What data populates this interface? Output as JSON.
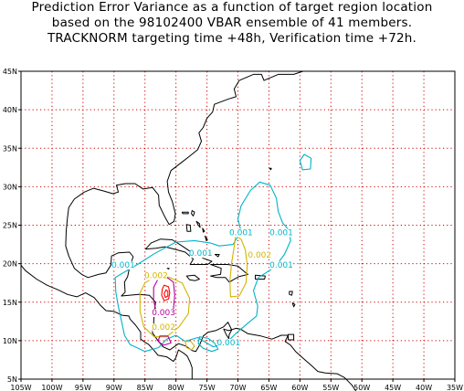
{
  "title": {
    "line1": "Prediction Error Variance as a function of target region location",
    "line2": "based on the 98102400 VBAR ensemble of 41 members.",
    "line3": "TRACKNORM targeting time +48h, Verification time +72h."
  },
  "axes": {
    "lon_labels": [
      "105W",
      "100W",
      "95W",
      "90W",
      "85W",
      "80W",
      "75W",
      "70W",
      "65W",
      "60W",
      "55W",
      "50W",
      "45W",
      "40W",
      "35W"
    ],
    "lat_labels": [
      "5N",
      "10N",
      "15N",
      "20N",
      "25N",
      "30N",
      "35N",
      "40N",
      "45N"
    ]
  },
  "contour_labels": [
    {
      "text": "0.001",
      "lon": -69.5,
      "lat": 23.7,
      "color": "#00b4c8"
    },
    {
      "text": "0.001",
      "lon": -63.0,
      "lat": 23.7,
      "color": "#00b4c8"
    },
    {
      "text": "0.002",
      "lon": -66.5,
      "lat": 20.8,
      "color": "#d2b400"
    },
    {
      "text": "0.001",
      "lon": -76.0,
      "lat": 21.0,
      "color": "#00b4c8"
    },
    {
      "text": "0.001",
      "lon": -88.5,
      "lat": 19.5,
      "color": "#00b4c8"
    },
    {
      "text": "0.001",
      "lon": -63.0,
      "lat": 19.5,
      "color": "#00b4c8"
    },
    {
      "text": "0.002",
      "lon": -83.2,
      "lat": 18.1,
      "color": "#d2b400"
    },
    {
      "text": "0.003",
      "lon": -82.0,
      "lat": 13.3,
      "color": "#b4009b"
    },
    {
      "text": "0.002",
      "lon": -82.0,
      "lat": 11.4,
      "color": "#d2b400"
    },
    {
      "text": "0.001",
      "lon": -71.5,
      "lat": 9.4,
      "color": "#00b4c8"
    }
  ],
  "colors": {
    "grid": "#d20000",
    "c001": "#00b4c8",
    "c002": "#d2b400",
    "c003": "#b4009b",
    "c004": "#ff0000",
    "coast": "#000000"
  }
}
